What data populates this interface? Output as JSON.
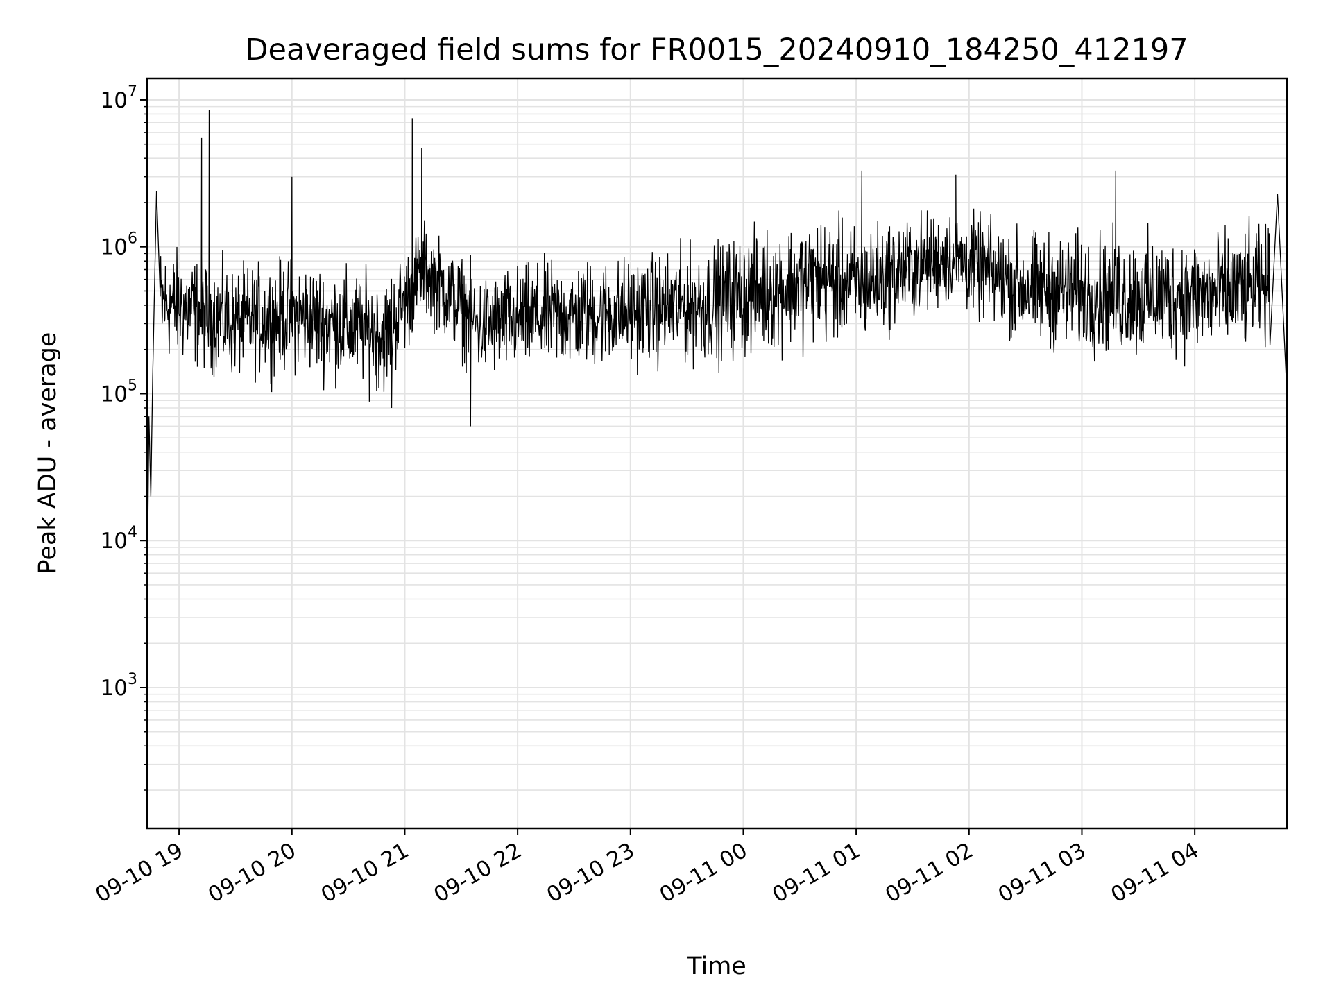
{
  "chart_data": {
    "type": "line",
    "title": "Deaveraged field sums for FR0015_20240910_184250_412197",
    "xlabel": "Time",
    "ylabel": "Peak ADU - average",
    "yscale": "log",
    "ylim": [
      110,
      14000000
    ],
    "xlim": [
      "2024-09-10 18:43",
      "2024-09-11 04:49"
    ],
    "grid": "major and minor, light gray",
    "line_color": "#000000",
    "x_ticks": [
      "09-10 19",
      "09-10 20",
      "09-10 21",
      "09-10 22",
      "09-10 23",
      "09-11 00",
      "09-11 01",
      "09-11 02",
      "09-11 03",
      "09-11 04"
    ],
    "y_ticks": [
      {
        "value": 1000,
        "base": "10",
        "exp": "3"
      },
      {
        "value": 10000,
        "base": "10",
        "exp": "4"
      },
      {
        "value": 100000,
        "base": "10",
        "exp": "5"
      },
      {
        "value": 1000000,
        "base": "10",
        "exp": "6"
      },
      {
        "value": 10000000,
        "base": "10",
        "exp": "7"
      }
    ],
    "series": [
      {
        "x": [
          "2024-09-10 18:43",
          "2024-09-10 18:44",
          "2024-09-10 18:45",
          "2024-09-10 18:46",
          "2024-09-10 18:48",
          "2024-09-10 18:51",
          "2024-09-10 18:55",
          "2024-09-10 19:04",
          "2024-09-10 19:12",
          "2024-09-10 19:14",
          "2024-09-10 19:16",
          "2024-09-10 19:25",
          "2024-09-10 19:55",
          "2024-09-10 20:00",
          "2024-09-10 20:53",
          "2024-09-10 21:04",
          "2024-09-10 21:09",
          "2024-09-10 21:35",
          "2024-09-10 22:00",
          "2024-09-10 23:30",
          "2024-09-11 00:40",
          "2024-09-11 01:03",
          "2024-09-11 01:45",
          "2024-09-11 01:53",
          "2024-09-11 02:30",
          "2024-09-11 03:18",
          "2024-09-11 04:39",
          "2024-09-11 04:44",
          "2024-09-11 04:49"
        ],
        "y": [
          3500,
          70000,
          20000,
          130000,
          2400000,
          300000,
          350000,
          400000,
          5500000,
          300000,
          8500000,
          400000,
          500000,
          3000000,
          80000,
          7500000,
          4700000,
          60000,
          300000,
          300000,
          800000,
          3300000,
          1000000,
          3100000,
          600000,
          3300000,
          500000,
          2300000,
          100000
        ],
        "band": [
          {
            "t": "2024-09-10 18:50",
            "lo": 120000,
            "hi": 1500000
          },
          {
            "t": "2024-09-10 19:30",
            "lo": 90000,
            "hi": 1000000
          },
          {
            "t": "2024-09-10 20:00",
            "lo": 100000,
            "hi": 1200000
          },
          {
            "t": "2024-09-10 20:50",
            "lo": 70000,
            "hi": 900000
          },
          {
            "t": "2024-09-10 21:10",
            "lo": 250000,
            "hi": 2000000
          },
          {
            "t": "2024-09-10 21:40",
            "lo": 90000,
            "hi": 900000
          },
          {
            "t": "2024-09-10 22:10",
            "lo": 100000,
            "hi": 1100000
          },
          {
            "t": "2024-09-10 23:00",
            "lo": 110000,
            "hi": 1200000
          },
          {
            "t": "2024-09-10 23:40",
            "lo": 110000,
            "hi": 1500000
          },
          {
            "t": "2024-09-11 00:40",
            "lo": 150000,
            "hi": 2500000
          },
          {
            "t": "2024-09-11 01:00",
            "lo": 150000,
            "hi": 2000000
          },
          {
            "t": "2024-09-11 01:50",
            "lo": 300000,
            "hi": 2500000
          },
          {
            "t": "2024-09-11 02:30",
            "lo": 150000,
            "hi": 1800000
          },
          {
            "t": "2024-09-11 03:20",
            "lo": 120000,
            "hi": 1800000
          },
          {
            "t": "2024-09-11 04:10",
            "lo": 120000,
            "hi": 1800000
          },
          {
            "t": "2024-09-11 04:40",
            "lo": 150000,
            "hi": 2000000
          }
        ]
      }
    ]
  }
}
